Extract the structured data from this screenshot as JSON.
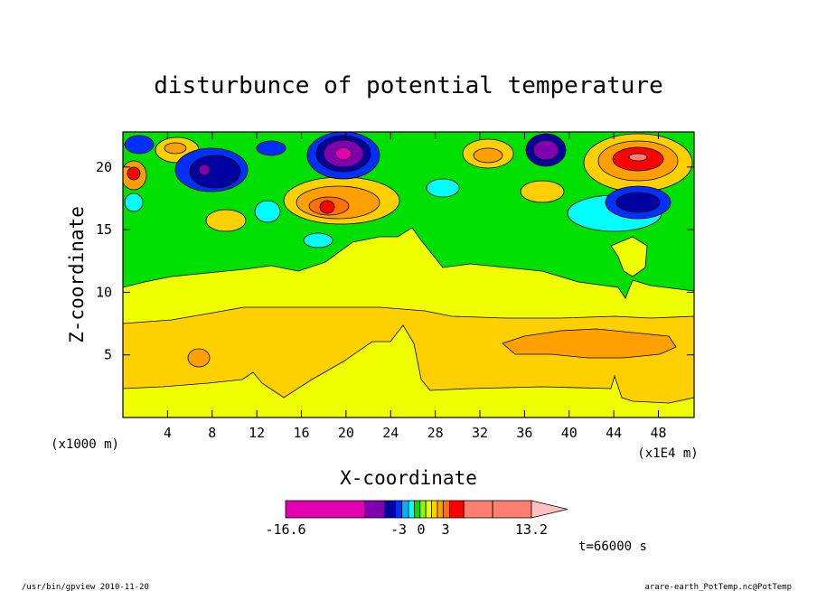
{
  "chart_data": {
    "type": "heatmap",
    "title": "disturbunce of potential temperature",
    "xlabel": "X-coordinate",
    "ylabel": "Z-coordinate",
    "x_unit_label": "(x1E4 m)",
    "y_unit_label": "(x1000 m)",
    "xlim": [
      0,
      51.2
    ],
    "ylim": [
      0,
      22.8
    ],
    "x_ticks": [
      "4",
      "8",
      "12",
      "16",
      "20",
      "24",
      "28",
      "32",
      "36",
      "40",
      "44",
      "48"
    ],
    "x_tick_values": [
      4,
      8,
      12,
      16,
      20,
      24,
      28,
      32,
      36,
      40,
      44,
      48
    ],
    "y_ticks": [
      "5",
      "10",
      "15",
      "20"
    ],
    "y_tick_values": [
      5,
      10,
      15,
      20
    ],
    "colorbar": {
      "labels": [
        "-16.6",
        "-3",
        "0",
        "3",
        "13.2"
      ],
      "label_values": [
        -16.6,
        -3,
        0,
        3,
        13.2
      ],
      "min": -16.6,
      "max": 13.2,
      "colors": [
        "#e000b0",
        "#8000b0",
        "#0000a0",
        "#0030ff",
        "#00b0ff",
        "#00ffff",
        "#00e000",
        "#80ff00",
        "#f0ff00",
        "#ffd000",
        "#ffa000",
        "#ff7000",
        "#ff0000",
        "#ff8070",
        "#ffc0c0"
      ]
    },
    "time_label": "t=66000 s",
    "bands": [
      {
        "name": "lower-yellow",
        "z_range": [
          0,
          2.5
        ],
        "level": "0 to 1",
        "color": "#f0ff00"
      },
      {
        "name": "orange-layer",
        "z_range": [
          2.5,
          8.0
        ],
        "level": "1 to 2",
        "color": "#ffd000"
      },
      {
        "name": "upper-yellow",
        "z_range": [
          8.0,
          10.5
        ],
        "level": "0 to 1",
        "color": "#f0ff00"
      },
      {
        "name": "green-region",
        "z_range": [
          10.5,
          15.0
        ],
        "level": "-1 to 0",
        "color": "#00e000"
      },
      {
        "name": "disturbed-top",
        "z_range": [
          15.0,
          22.8
        ],
        "level": "-16.6 to 13.2",
        "color": "mixed"
      }
    ],
    "features": [
      {
        "type": "min",
        "x": 19.5,
        "z": 21.0,
        "label": "strong negative cell",
        "color": "#e000b0"
      },
      {
        "type": "min",
        "x": 9.5,
        "z": 20.0,
        "label": "negative cell",
        "color": "#0000a0"
      },
      {
        "type": "min",
        "x": 37.5,
        "z": 21.5,
        "label": "negative cell",
        "color": "#0000a0"
      },
      {
        "type": "min",
        "x": 46.0,
        "z": 17.3,
        "label": "negative cell",
        "color": "#0000a0"
      },
      {
        "type": "max",
        "x": 46.0,
        "z": 21.0,
        "label": "positive cell",
        "color": "#ff0000"
      },
      {
        "type": "max",
        "x": 18.5,
        "z": 17.0,
        "label": "positive cell",
        "color": "#ff0000"
      },
      {
        "type": "max",
        "x": 1.0,
        "z": 19.5,
        "label": "positive cell",
        "color": "#ff0000"
      },
      {
        "type": "max",
        "x": 7.0,
        "z": 4.8,
        "label": "orange patch",
        "color": "#ffa000"
      },
      {
        "type": "max",
        "x": 41.0,
        "z": 6.0,
        "label": "orange patch",
        "color": "#ffa000"
      }
    ]
  },
  "footer": {
    "left": "/usr/bin/gpview  2010-11-20",
    "right": "arare-earth_PotTemp.nc@PotTemp"
  }
}
